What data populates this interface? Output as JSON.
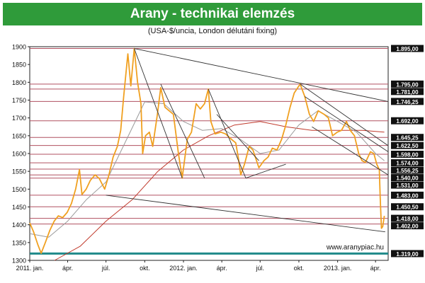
{
  "title": "Arany - technikai elemzés",
  "subtitle": "(USA-$/uncia, London délutáni fixing)",
  "watermark": "www.aranypiac.hu",
  "colors": {
    "title_bg": "#2f9b3a",
    "price": "#f0a020",
    "ma_short": "#9a9a9a",
    "ma_long": "#c0392b",
    "level_line": "#b05060",
    "support_line": "#1f8a8a",
    "trendline": "#333333"
  },
  "chart_data": {
    "type": "line",
    "title": "Arany - technikai elemzés",
    "subtitle": "(USA-$/uncia, London délutáni fixing)",
    "xlabel": "",
    "ylabel": "",
    "ylim": [
      1300,
      1900
    ],
    "xlim": [
      "2011-01-01",
      "2013-05-01"
    ],
    "grid": false,
    "yticks": [
      1300,
      1350,
      1400,
      1450,
      1500,
      1550,
      1600,
      1650,
      1700,
      1750,
      1800,
      1850,
      1900
    ],
    "xticks": [
      {
        "date": "2011-01-01",
        "label": "2011. jan."
      },
      {
        "date": "2011-04-01",
        "label": "ápr."
      },
      {
        "date": "2011-07-01",
        "label": "júl."
      },
      {
        "date": "2011-10-01",
        "label": "okt."
      },
      {
        "date": "2012-01-01",
        "label": "2012. jan."
      },
      {
        "date": "2012-04-01",
        "label": "ápr."
      },
      {
        "date": "2012-07-01",
        "label": "júl."
      },
      {
        "date": "2012-10-01",
        "label": "okt."
      },
      {
        "date": "2013-01-01",
        "label": "2013. jan."
      },
      {
        "date": "2013-04-01",
        "label": "ápr."
      }
    ],
    "levels": [
      {
        "value": 1895.0,
        "label": "1.895,00"
      },
      {
        "value": 1795.0,
        "label": "1.795,00"
      },
      {
        "value": 1781.0,
        "label": "1.781,00"
      },
      {
        "value": 1746.25,
        "label": "1.746,25"
      },
      {
        "value": 1692.0,
        "label": "1.692,00"
      },
      {
        "value": 1645.25,
        "label": "1.645,25"
      },
      {
        "value": 1622.5,
        "label": "1.622,50"
      },
      {
        "value": 1598.0,
        "label": "1.598,00"
      },
      {
        "value": 1574.0,
        "label": "1.574,00"
      },
      {
        "value": 1556.25,
        "label": "1.556,25"
      },
      {
        "value": 1540.0,
        "label": "1.540,00"
      },
      {
        "value": 1531.0,
        "label": "1.531,00"
      },
      {
        "value": 1483.0,
        "label": "1.483,00"
      },
      {
        "value": 1450.5,
        "label": "1.450,50"
      },
      {
        "value": 1418.0,
        "label": "1.418,00"
      },
      {
        "value": 1402.0,
        "label": "1.402,00"
      },
      {
        "value": 1319.0,
        "label": "1.319,00"
      }
    ],
    "series": [
      {
        "color": "#f0a020",
        "points": [
          [
            "2011-01-01",
            1405
          ],
          [
            "2011-01-10",
            1380
          ],
          [
            "2011-01-20",
            1345
          ],
          [
            "2011-01-28",
            1320
          ],
          [
            "2011-02-07",
            1350
          ],
          [
            "2011-02-18",
            1385
          ],
          [
            "2011-02-28",
            1410
          ],
          [
            "2011-03-10",
            1425
          ],
          [
            "2011-03-20",
            1420
          ],
          [
            "2011-03-31",
            1435
          ],
          [
            "2011-04-10",
            1460
          ],
          [
            "2011-04-20",
            1500
          ],
          [
            "2011-04-29",
            1555
          ],
          [
            "2011-05-05",
            1485
          ],
          [
            "2011-05-15",
            1500
          ],
          [
            "2011-05-25",
            1525
          ],
          [
            "2011-06-05",
            1540
          ],
          [
            "2011-06-15",
            1530
          ],
          [
            "2011-06-28",
            1500
          ],
          [
            "2011-07-08",
            1540
          ],
          [
            "2011-07-18",
            1590
          ],
          [
            "2011-07-28",
            1620
          ],
          [
            "2011-08-05",
            1665
          ],
          [
            "2011-08-12",
            1760
          ],
          [
            "2011-08-22",
            1880
          ],
          [
            "2011-08-29",
            1790
          ],
          [
            "2011-09-06",
            1895
          ],
          [
            "2011-09-14",
            1800
          ],
          [
            "2011-09-22",
            1740
          ],
          [
            "2011-09-26",
            1600
          ],
          [
            "2011-10-03",
            1650
          ],
          [
            "2011-10-12",
            1660
          ],
          [
            "2011-10-20",
            1620
          ],
          [
            "2011-10-31",
            1710
          ],
          [
            "2011-11-08",
            1785
          ],
          [
            "2011-11-18",
            1730
          ],
          [
            "2011-11-28",
            1720
          ],
          [
            "2011-12-08",
            1710
          ],
          [
            "2011-12-20",
            1600
          ],
          [
            "2011-12-29",
            1531
          ],
          [
            "2012-01-10",
            1640
          ],
          [
            "2012-01-20",
            1660
          ],
          [
            "2012-01-31",
            1740
          ],
          [
            "2012-02-10",
            1725
          ],
          [
            "2012-02-20",
            1740
          ],
          [
            "2012-02-29",
            1781
          ],
          [
            "2012-03-06",
            1690
          ],
          [
            "2012-03-16",
            1655
          ],
          [
            "2012-03-30",
            1660
          ],
          [
            "2012-04-10",
            1655
          ],
          [
            "2012-04-24",
            1640
          ],
          [
            "2012-05-04",
            1630
          ],
          [
            "2012-05-10",
            1590
          ],
          [
            "2012-05-16",
            1540
          ],
          [
            "2012-05-25",
            1570
          ],
          [
            "2012-06-05",
            1620
          ],
          [
            "2012-06-14",
            1610
          ],
          [
            "2012-06-28",
            1560
          ],
          [
            "2012-07-10",
            1580
          ],
          [
            "2012-07-20",
            1590
          ],
          [
            "2012-07-30",
            1615
          ],
          [
            "2012-08-10",
            1610
          ],
          [
            "2012-08-21",
            1640
          ],
          [
            "2012-08-31",
            1680
          ],
          [
            "2012-09-10",
            1730
          ],
          [
            "2012-09-20",
            1770
          ],
          [
            "2012-10-04",
            1795
          ],
          [
            "2012-10-15",
            1760
          ],
          [
            "2012-10-26",
            1710
          ],
          [
            "2012-11-05",
            1690
          ],
          [
            "2012-11-16",
            1720
          ],
          [
            "2012-11-30",
            1710
          ],
          [
            "2012-12-10",
            1700
          ],
          [
            "2012-12-20",
            1650
          ],
          [
            "2012-12-31",
            1660
          ],
          [
            "2013-01-10",
            1665
          ],
          [
            "2013-01-22",
            1690
          ],
          [
            "2013-01-31",
            1665
          ],
          [
            "2013-02-10",
            1650
          ],
          [
            "2013-02-20",
            1600
          ],
          [
            "2013-02-28",
            1580
          ],
          [
            "2013-03-08",
            1575
          ],
          [
            "2013-03-20",
            1605
          ],
          [
            "2013-03-28",
            1600
          ],
          [
            "2013-04-04",
            1570
          ],
          [
            "2013-04-10",
            1555
          ],
          [
            "2013-04-12",
            1480
          ],
          [
            "2013-04-15",
            1390
          ],
          [
            "2013-04-18",
            1395
          ],
          [
            "2013-04-22",
            1425
          ]
        ]
      },
      {
        "color": "#9a9a9a",
        "points": [
          [
            "2011-01-01",
            1375
          ],
          [
            "2011-02-15",
            1365
          ],
          [
            "2011-04-01",
            1410
          ],
          [
            "2011-05-15",
            1470
          ],
          [
            "2011-07-01",
            1520
          ],
          [
            "2011-08-15",
            1630
          ],
          [
            "2011-10-01",
            1745
          ],
          [
            "2011-11-15",
            1740
          ],
          [
            "2012-01-01",
            1690
          ],
          [
            "2012-02-15",
            1665
          ],
          [
            "2012-04-01",
            1670
          ],
          [
            "2012-05-15",
            1640
          ],
          [
            "2012-07-01",
            1600
          ],
          [
            "2012-08-15",
            1610
          ],
          [
            "2012-10-01",
            1680
          ],
          [
            "2012-11-15",
            1720
          ],
          [
            "2013-01-01",
            1690
          ],
          [
            "2013-02-15",
            1660
          ],
          [
            "2013-04-01",
            1600
          ],
          [
            "2013-04-22",
            1580
          ]
        ]
      },
      {
        "color": "#c0392b",
        "points": [
          [
            "2011-03-01",
            1300
          ],
          [
            "2011-05-01",
            1340
          ],
          [
            "2011-07-01",
            1410
          ],
          [
            "2011-09-01",
            1470
          ],
          [
            "2011-11-01",
            1550
          ],
          [
            "2012-01-01",
            1610
          ],
          [
            "2012-03-01",
            1650
          ],
          [
            "2012-05-01",
            1680
          ],
          [
            "2012-07-01",
            1690
          ],
          [
            "2012-09-01",
            1675
          ],
          [
            "2012-11-01",
            1665
          ],
          [
            "2013-01-01",
            1665
          ],
          [
            "2013-03-01",
            1665
          ],
          [
            "2013-04-22",
            1660
          ]
        ]
      }
    ],
    "trendlines": [
      {
        "from": [
          "2011-09-06",
          1895
        ],
        "to": [
          "2013-05-01",
          1746
        ]
      },
      {
        "from": [
          "2011-09-06",
          1895
        ],
        "to": [
          "2011-12-29",
          1531
        ]
      },
      {
        "from": [
          "2011-11-08",
          1795
        ],
        "to": [
          "2012-02-20",
          1531
        ]
      },
      {
        "from": [
          "2012-02-29",
          1781
        ],
        "to": [
          "2012-05-28",
          1531
        ]
      },
      {
        "from": [
          "2012-05-28",
          1531
        ],
        "to": [
          "2012-08-31",
          1570
        ]
      },
      {
        "from": [
          "2012-03-20",
          1710
        ],
        "to": [
          "2012-06-28",
          1580
        ]
      },
      {
        "from": [
          "2012-10-04",
          1795
        ],
        "to": [
          "2013-05-01",
          1622
        ]
      },
      {
        "from": [
          "2012-10-15",
          1760
        ],
        "to": [
          "2013-05-01",
          1605
        ]
      },
      {
        "from": [
          "2012-11-01",
          1675
        ],
        "to": [
          "2013-05-01",
          1540
        ]
      },
      {
        "from": [
          "2011-07-01",
          1483
        ],
        "to": [
          "2013-04-24",
          1380
        ]
      }
    ]
  }
}
